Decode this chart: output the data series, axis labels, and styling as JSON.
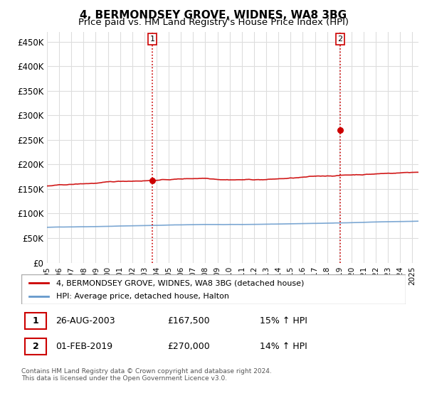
{
  "title": "4, BERMONDSEY GROVE, WIDNES, WA8 3BG",
  "subtitle": "Price paid vs. HM Land Registry's House Price Index (HPI)",
  "ylabel_ticks": [
    "£0",
    "£50K",
    "£100K",
    "£150K",
    "£200K",
    "£250K",
    "£300K",
    "£350K",
    "£400K",
    "£450K"
  ],
  "ytick_values": [
    0,
    50000,
    100000,
    150000,
    200000,
    250000,
    300000,
    350000,
    400000,
    450000
  ],
  "ylim": [
    0,
    470000
  ],
  "xlim_start": 1995.0,
  "xlim_end": 2025.5,
  "sale1_x": 2003.65,
  "sale1_y": 167500,
  "sale2_x": 2019.08,
  "sale2_y": 270000,
  "sale1_label": "1",
  "sale2_label": "2",
  "vline_color": "#cc0000",
  "vline_style": ":",
  "dot_color": "#cc0000",
  "legend_entries": [
    "4, BERMONDSEY GROVE, WIDNES, WA8 3BG (detached house)",
    "HPI: Average price, detached house, Halton"
  ],
  "legend_colors": [
    "#cc0000",
    "#6699cc"
  ],
  "table_rows": [
    [
      "1",
      "26-AUG-2003",
      "£167,500",
      "15% ↑ HPI"
    ],
    [
      "2",
      "01-FEB-2019",
      "£270,000",
      "14% ↑ HPI"
    ]
  ],
  "footer_text": "Contains HM Land Registry data © Crown copyright and database right 2024.\nThis data is licensed under the Open Government Licence v3.0.",
  "background_color": "#ffffff",
  "plot_bg_color": "#ffffff",
  "grid_color": "#dddddd",
  "title_fontsize": 11,
  "subtitle_fontsize": 9.5
}
